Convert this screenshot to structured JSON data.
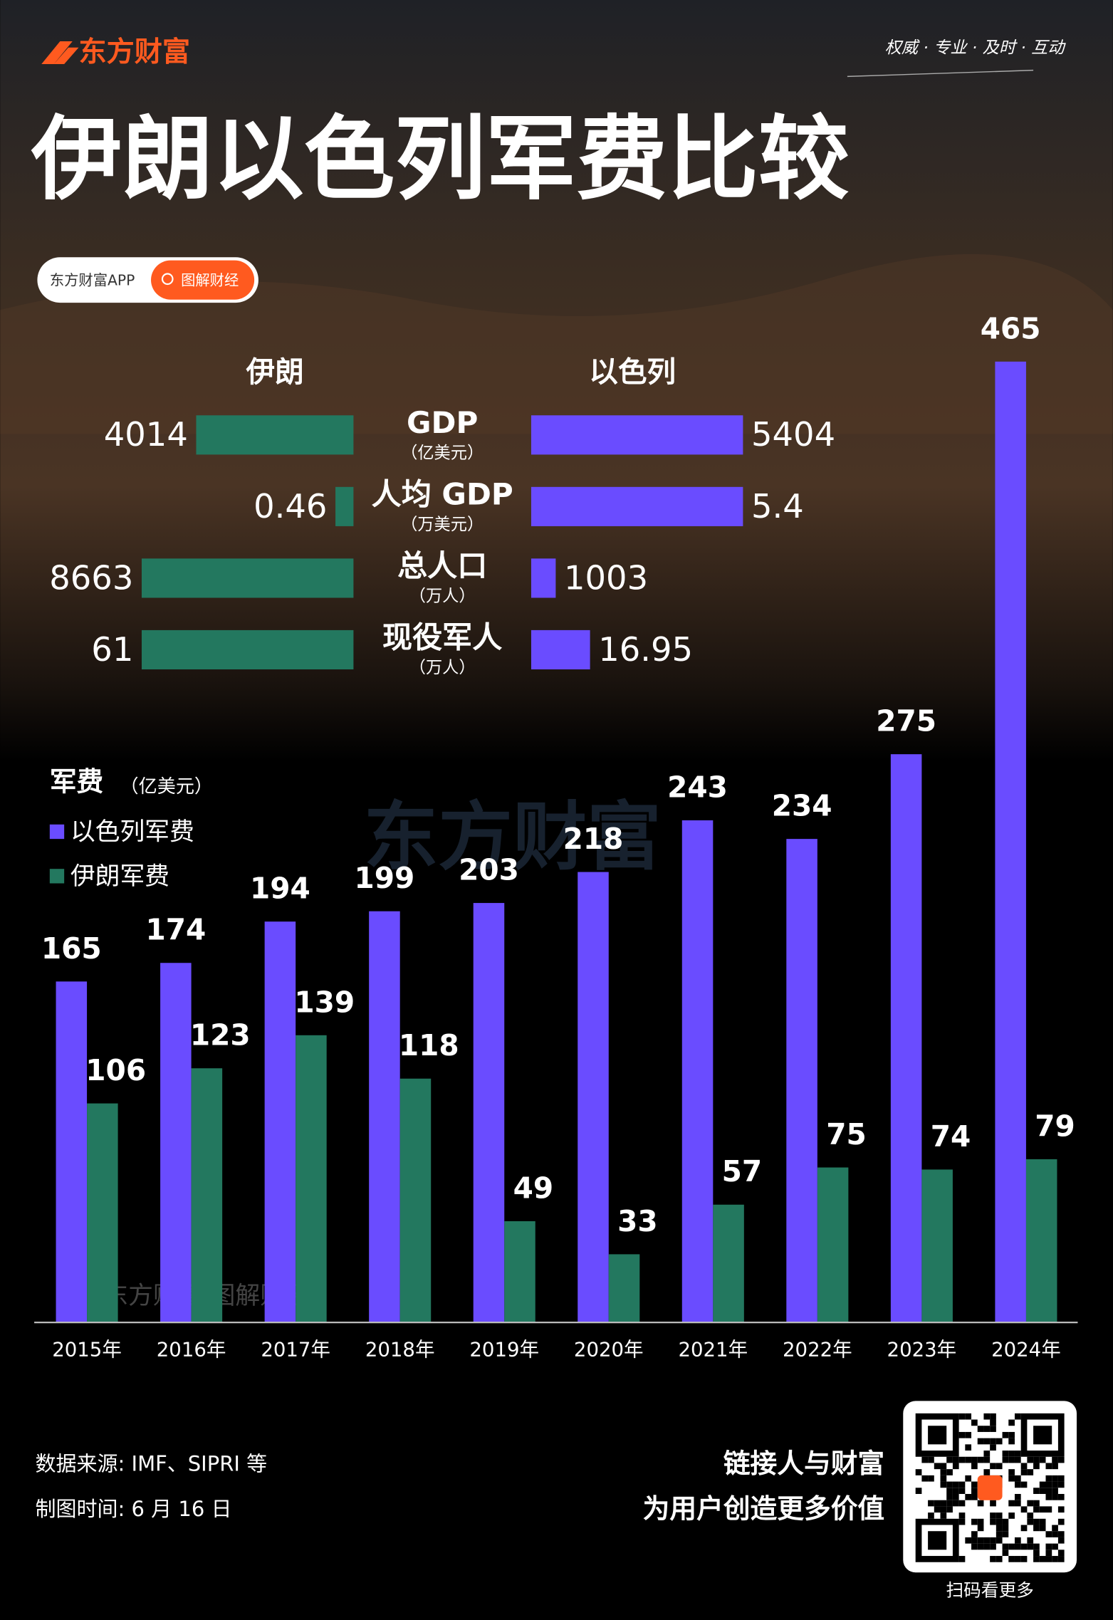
{
  "header": {
    "brand": "东方财富",
    "slogan": "权威 · 专业 · 及时 · 互动",
    "title": "伊朗以色列军费比较",
    "app": "东方财富APP",
    "tag": "图解财经"
  },
  "chart_data": [
    {
      "type": "butterfly",
      "categories": [
        "GDP",
        "人均 GDP",
        "总人口",
        "现役军人"
      ],
      "units": [
        "（亿美元）",
        "（万美元）",
        "（万人）",
        "（万人）"
      ],
      "series": [
        {
          "name": "伊朗",
          "color": "#23785f",
          "values": [
            4014,
            0.46,
            8663,
            61
          ]
        },
        {
          "name": "以色列",
          "color": "#6a4cff",
          "values": [
            5404,
            5.4,
            1003,
            16.95
          ]
        }
      ]
    },
    {
      "type": "bar",
      "title": "军费",
      "subtitle": "（亿美元）",
      "categories": [
        "2015年",
        "2016年",
        "2017年",
        "2018年",
        "2019年",
        "2020年",
        "2021年",
        "2022年",
        "2023年",
        "2024年"
      ],
      "series": [
        {
          "name": "以色列军费",
          "color": "#6a4cff",
          "values": [
            165,
            174,
            194,
            199,
            203,
            218,
            243,
            234,
            275,
            465
          ]
        },
        {
          "name": "伊朗军费",
          "color": "#23785f",
          "values": [
            106,
            123,
            139,
            118,
            49,
            33,
            57,
            75,
            74,
            79
          ]
        }
      ]
    }
  ],
  "watermark": {
    "big": "东方财富",
    "small": "东方财富 图解财经"
  },
  "footer": {
    "source": "数据来源: IMF、SIPRI 等",
    "date": "制图时间: 6 月 16 日",
    "slogan1": "链接人与财富",
    "slogan2": "为用户创造更多价值",
    "qr": "扫码看更多"
  }
}
